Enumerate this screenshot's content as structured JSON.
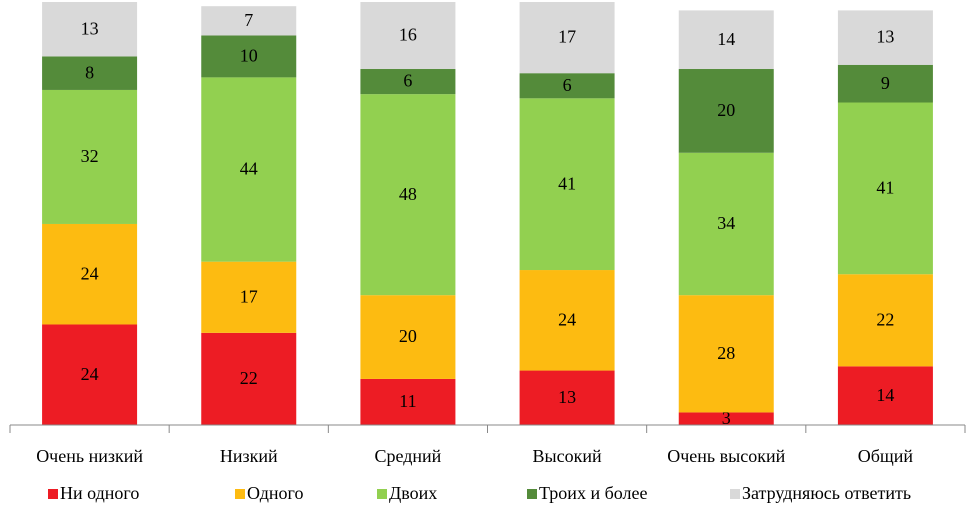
{
  "chart_data": {
    "type": "stacked_bar",
    "categories": [
      "Очень низкий",
      "Низкий",
      "Средний",
      "Высокий",
      "Очень высокий",
      "Общий"
    ],
    "series": [
      {
        "name": "Ни одного",
        "color": "#ed1c24",
        "values": [
          24,
          22,
          11,
          13,
          3,
          14
        ]
      },
      {
        "name": "Одного",
        "color": "#fdbb11",
        "values": [
          24,
          17,
          20,
          24,
          28,
          22
        ]
      },
      {
        "name": "Двоих",
        "color": "#92d050",
        "values": [
          32,
          44,
          48,
          41,
          34,
          41
        ]
      },
      {
        "name": "Троих и более",
        "color": "#548b3a",
        "values": [
          8,
          10,
          6,
          6,
          20,
          9
        ]
      },
      {
        "name": "Затрудняюсь ответить",
        "color": "#d9d9d9",
        "values": [
          13,
          7,
          16,
          17,
          14,
          13
        ]
      }
    ],
    "legend": "bottom"
  }
}
